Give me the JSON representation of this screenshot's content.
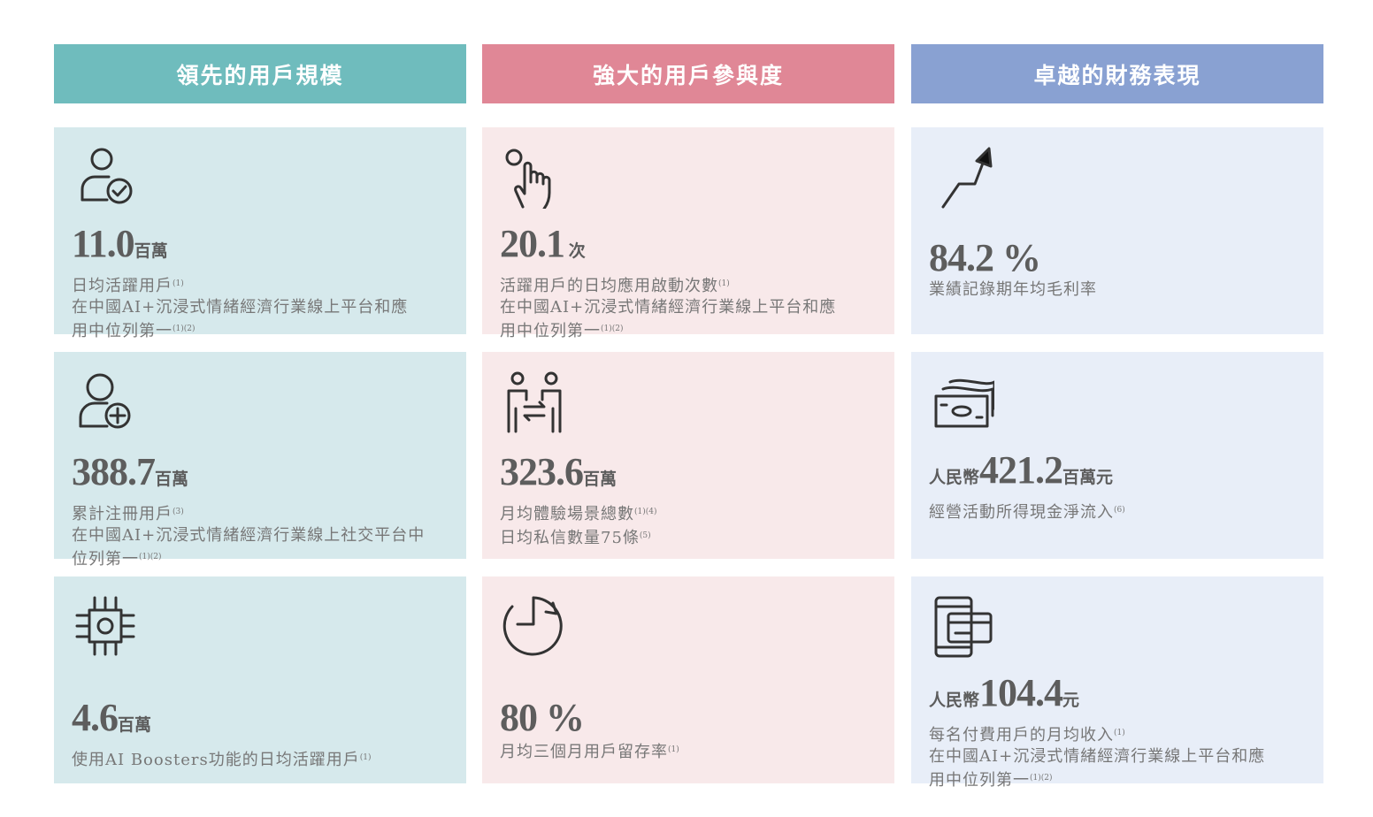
{
  "headers": [
    {
      "label": "領先的用戶規模",
      "color": "#6fbcbd"
    },
    {
      "label": "強大的用戶參與度",
      "color": "#e08796"
    },
    {
      "label": "卓越的財務表現",
      "color": "#89a1d2"
    }
  ],
  "cards": [
    {
      "icon": "user-check-icon",
      "prefix": "",
      "number": "11.0",
      "unit": "百萬",
      "lines": [
        {
          "text": "日均活躍用戶",
          "sup": "(1)"
        },
        {
          "text": "在中國AI+沉浸式情緒經濟行業線上平台和應",
          "sup": ""
        },
        {
          "text": "用中位列第一",
          "sup": "(1)(2)"
        }
      ]
    },
    {
      "icon": "tap-hand-icon",
      "prefix": "",
      "number": "20.1",
      "unit": " 次",
      "lines": [
        {
          "text": "活躍用戶的日均應用啟動次數",
          "sup": "(1)"
        },
        {
          "text": "在中國AI+沉浸式情緒經濟行業線上平台和應",
          "sup": ""
        },
        {
          "text": "用中位列第一",
          "sup": "(1)(2)"
        }
      ]
    },
    {
      "icon": "trend-up-arrow-icon",
      "prefix": "",
      "number": "84.2 %",
      "unit": "",
      "lines": [
        {
          "text": "業績記錄期年均毛利率",
          "sup": ""
        }
      ]
    },
    {
      "icon": "user-add-icon",
      "prefix": "",
      "number": "388.7",
      "unit": "百萬",
      "lines": [
        {
          "text": "累計注冊用戶",
          "sup": "(3)"
        },
        {
          "text": "在中國AI+沉浸式情緒經濟行業線上社交平台中",
          "sup": ""
        },
        {
          "text": "位列第一",
          "sup": "(1)(2)"
        }
      ]
    },
    {
      "icon": "people-exchange-icon",
      "prefix": "",
      "number": "323.6",
      "unit": "百萬",
      "lines": [
        {
          "text": "月均體驗場景總數",
          "sup": "(1)(4)"
        },
        {
          "text": "日均私信數量75條",
          "sup": "(5)"
        }
      ]
    },
    {
      "icon": "cash-stack-icon",
      "prefix": "人民幣",
      "number": "421.2",
      "unit": "百萬元",
      "lines": [
        {
          "text": "經營活動所得現金淨流入",
          "sup": "(6)"
        }
      ]
    },
    {
      "icon": "ai-chip-icon",
      "prefix": "",
      "number": "4.6",
      "unit": "百萬",
      "lines": [
        {
          "text": "使用AI Boosters功能的日均活躍用戶",
          "sup": "(1)"
        }
      ]
    },
    {
      "icon": "timer-icon",
      "prefix": "",
      "number": "80 %",
      "unit": "",
      "lines": [
        {
          "text": "月均三個月用戶留存率",
          "sup": "(1)"
        }
      ]
    },
    {
      "icon": "mobile-payment-icon",
      "prefix": "人民幣",
      "number": "104.4",
      "unit": "元",
      "lines": [
        {
          "text": "每名付費用戶的月均收入",
          "sup": "(1)"
        },
        {
          "text": "在中國AI+沉浸式情緒經濟行業線上平台和應",
          "sup": ""
        },
        {
          "text": "用中位列第一",
          "sup": "(1)(2)"
        }
      ]
    }
  ]
}
